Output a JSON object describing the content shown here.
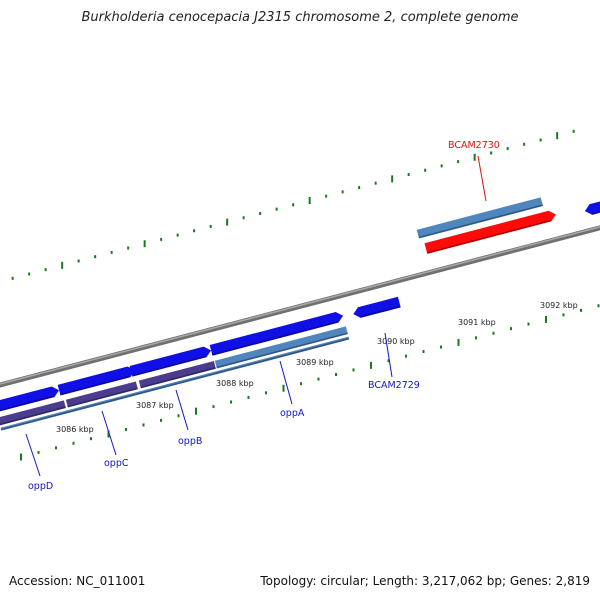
{
  "title": "Burkholderia cenocepacia J2315 chromosome 2, complete genome",
  "footer": {
    "accession": "Accession: NC_011001",
    "summary": "Topology: circular; Length: 3,217,062 bp; Genes: 2,819"
  },
  "colors": {
    "forward_gene": "#1010e6",
    "highlight_gene": "#ff0a0a",
    "cds_steelblue": "#4f86be",
    "cds_purple": "#4b3c90",
    "backbone": "#888888",
    "tick": "#1a7a1a",
    "label_blue": "#1414c8",
    "label_red": "#dd1111"
  },
  "ruler": {
    "labels": [
      "3086 kbp",
      "3087 kbp",
      "3088 kbp",
      "3089 kbp",
      "3090 kbp",
      "3091 kbp",
      "3092 kbp"
    ]
  },
  "genes": [
    {
      "label": "oppD",
      "color": "blue"
    },
    {
      "label": "oppC",
      "color": "blue"
    },
    {
      "label": "oppB",
      "color": "blue"
    },
    {
      "label": "oppA",
      "color": "blue"
    },
    {
      "label": "BCAM2729",
      "color": "blue"
    },
    {
      "label": "BCAM2730",
      "color": "red"
    }
  ]
}
